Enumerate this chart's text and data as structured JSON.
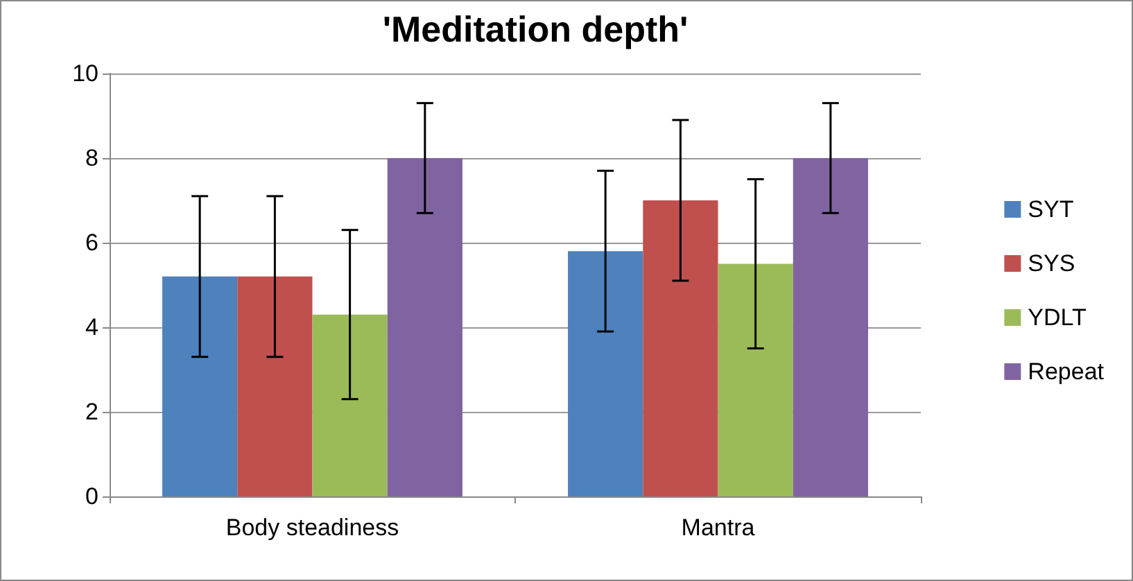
{
  "chart_data": {
    "type": "bar",
    "title": "'Meditation depth'",
    "categories": [
      "Body steadiness",
      "Mantra"
    ],
    "series": [
      {
        "name": "SYT",
        "color": "#4f81bd",
        "values": [
          5.2,
          5.8
        ],
        "errors": [
          1.9,
          1.9
        ]
      },
      {
        "name": "SYS",
        "color": "#c0504d",
        "values": [
          5.2,
          7.0
        ],
        "errors": [
          1.9,
          1.9
        ]
      },
      {
        "name": "YDLT",
        "color": "#9bbb59",
        "values": [
          4.3,
          5.5
        ],
        "errors": [
          2.0,
          2.0
        ]
      },
      {
        "name": "Repeat",
        "color": "#8064a2",
        "values": [
          8,
          8
        ],
        "errors": [
          1.3,
          1.3
        ]
      }
    ],
    "ylim": [
      0,
      10
    ],
    "yticks": [
      0,
      2,
      4,
      6,
      8,
      10
    ],
    "grid": "y",
    "legend": "right"
  }
}
